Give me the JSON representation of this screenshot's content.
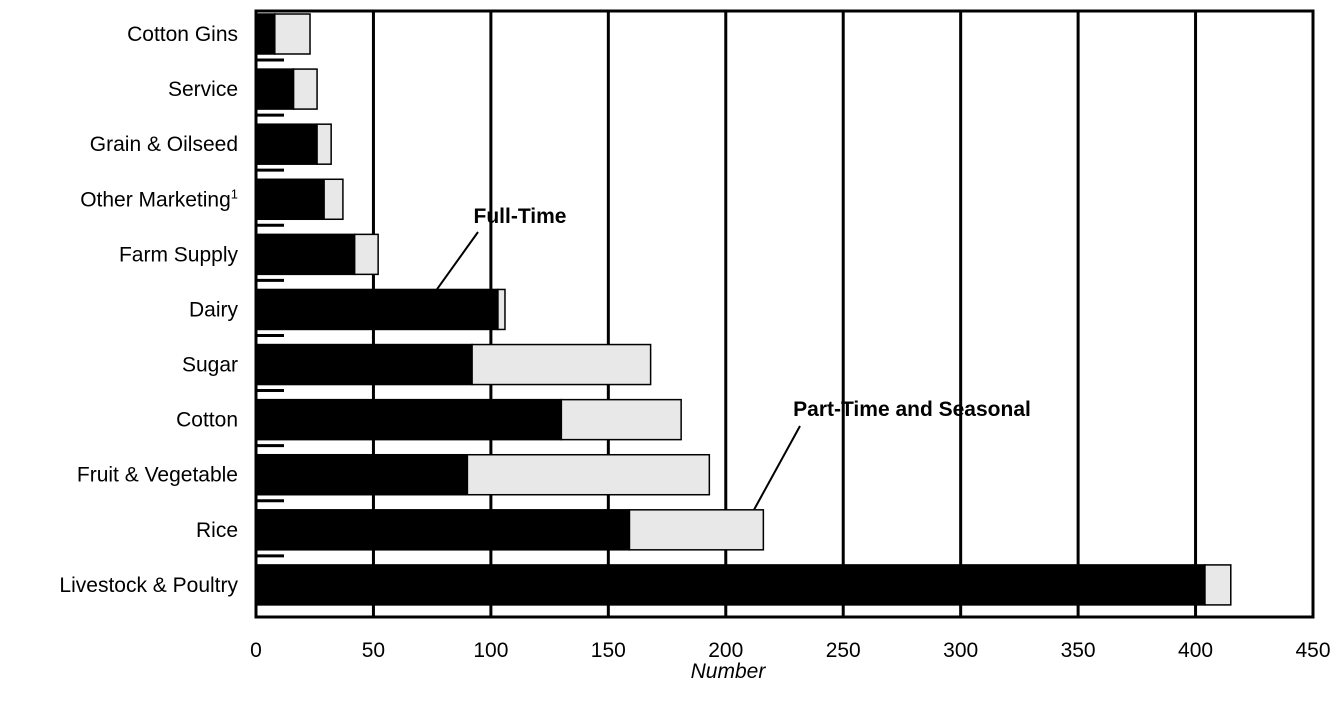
{
  "chart_data": {
    "type": "bar",
    "orientation": "horizontal",
    "stacked": true,
    "categories": [
      "Cotton Gins",
      "Service",
      "Grain & Oilseed",
      "Other Marketing",
      "Farm Supply",
      "Dairy",
      "Sugar",
      "Cotton",
      "Fruit & Vegetable",
      "Rice",
      "Livestock & Poultry"
    ],
    "category_superscripts": [
      "",
      "",
      "",
      "1",
      "",
      "",
      "",
      "",
      "",
      "",
      ""
    ],
    "series": [
      {
        "values": [
          8,
          16,
          26,
          29,
          42,
          103,
          92,
          130,
          90,
          159,
          404
        ],
        "color": "#000000"
      },
      {
        "values": [
          15,
          10,
          6,
          8,
          10,
          3,
          76,
          51,
          103,
          57,
          11
        ],
        "color": "#e8e8e8"
      }
    ],
    "annotations": [
      {
        "text": "Full-Time",
        "target_category": "Dairy",
        "target_value": 77
      },
      {
        "text": "Part-Time and Seasonal",
        "target_category": "Rice",
        "target_value": 212
      }
    ],
    "xlabel": "Number",
    "ylabel": "",
    "title": "",
    "xlim": [
      0,
      450
    ],
    "xticks": [
      0,
      50,
      100,
      150,
      200,
      250,
      300,
      350,
      400,
      450
    ],
    "grid": "vertical"
  }
}
